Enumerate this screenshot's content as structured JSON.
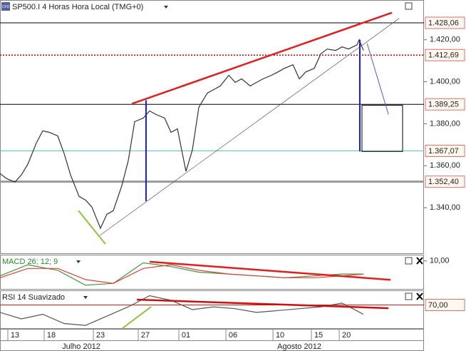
{
  "chart_data": [
    {
      "type": "line",
      "title": "SP500.I 4 Horas Hora Local (TMG+0)",
      "icon_text": "CFD",
      "xlim": [
        0,
        198.3
      ],
      "ylim": [
        1318.3,
        1438.6
      ],
      "yticks": [
        {
          "value": 1420,
          "label": "1.420,00"
        },
        {
          "value": 1400,
          "label": "1.400,00"
        },
        {
          "value": 1380,
          "label": "1.380,00"
        },
        {
          "value": 1360,
          "label": "1.360,00"
        },
        {
          "value": 1340,
          "label": "1.340,00"
        }
      ],
      "levels": [
        {
          "value": 1428.06,
          "label": "1.428,06",
          "color": "#000000",
          "style": "solid"
        },
        {
          "value": 1412.69,
          "label": "1.412,69",
          "color": "#cc0000",
          "style": "dotted"
        },
        {
          "value": 1389.25,
          "label": "1.389,25",
          "color": "#000000",
          "style": "solid"
        },
        {
          "value": 1367.07,
          "label": "1.367,07",
          "color": "#5cc8c0",
          "style": "solid"
        },
        {
          "value": 1352.4,
          "label": "1.352,40",
          "color": "#999999",
          "style": "thick"
        }
      ],
      "xticks": [
        {
          "value": 7,
          "label": "13"
        },
        {
          "value": 24,
          "label": "18"
        },
        {
          "value": 47,
          "label": "23"
        },
        {
          "value": 68,
          "label": "27"
        },
        {
          "value": 87,
          "label": "01"
        },
        {
          "value": 109,
          "label": "06"
        },
        {
          "value": 131,
          "label": "10"
        },
        {
          "value": 149,
          "label": "15"
        },
        {
          "value": 162,
          "label": "20"
        }
      ],
      "months": [
        {
          "value": 38,
          "label": "Julho 2012"
        },
        {
          "value": 140,
          "label": "Agosto 2012"
        }
      ],
      "series": [
        {
          "color": "#333333",
          "x": [
            0,
            3,
            7,
            10,
            13,
            17,
            20,
            23,
            27,
            30,
            33,
            37,
            40,
            43,
            47,
            50,
            53,
            57,
            60,
            63,
            67,
            70,
            73,
            77,
            80,
            83,
            87,
            90,
            93,
            97,
            100,
            103,
            107,
            110,
            113,
            117,
            120,
            123,
            127,
            130,
            133,
            137,
            140,
            143,
            147,
            150,
            153,
            157,
            160,
            163,
            167,
            168,
            170
          ],
          "values": [
            1356.3,
            1353.9,
            1352.2,
            1355.6,
            1360.7,
            1370.8,
            1376.6,
            1375.9,
            1374.2,
            1365.8,
            1355.6,
            1345.4,
            1343.7,
            1340.3,
            1330.2,
            1336.9,
            1338.6,
            1350.5,
            1362.4,
            1381,
            1382.7,
            1386.1,
            1384.4,
            1382.7,
            1375.9,
            1377.6,
            1357.3,
            1367.5,
            1387.8,
            1394.6,
            1396.3,
            1398,
            1403.1,
            1399.7,
            1401.4,
            1398,
            1399.7,
            1401.4,
            1403.1,
            1404.7,
            1406.4,
            1408.1,
            1401.4,
            1404.7,
            1406.4,
            1413.2,
            1415.6,
            1414.9,
            1416.6,
            1415.6,
            1417.6,
            1420,
            1414.9
          ]
        }
      ],
      "trendlines": [
        {
          "x": [
            61.7,
            183.3
          ],
          "y": [
            1389.5,
            1432.9
          ],
          "color": "#e02020",
          "width": 2.5
        },
        {
          "x": [
            46.7,
            186.7
          ],
          "y": [
            1326.8,
            1430.2
          ],
          "color": "#555555",
          "width": 0.7
        },
        {
          "x": [
            36.7,
            49.3
          ],
          "y": [
            1338.6,
            1322.7
          ],
          "color": "#8cc63f",
          "width": 2
        },
        {
          "x": [
            68.3,
            68.3
          ],
          "y": [
            1391.2,
            1343.1
          ],
          "color": "#1a1ad0",
          "width": 2
        },
        {
          "x": [
            168.3,
            168.3
          ],
          "y": [
            1420,
            1366.8
          ],
          "color": "#1a1ad0",
          "width": 2
        },
        {
          "x": [
            171.7,
            181.7
          ],
          "y": [
            1418.3,
            1384.4
          ],
          "color": "#4a5ae0",
          "width": 1
        }
      ],
      "box": {
        "x": [
          169.3,
          188.3
        ],
        "y": [
          1366.8,
          1388.8
        ]
      }
    },
    {
      "type": "line",
      "title": "MACD 26; 12; 9",
      "ylim": [
        -5,
        13
      ],
      "yticks": [
        {
          "value": 10,
          "label": "10,00"
        }
      ],
      "series": [
        {
          "color": "#3a9a3a",
          "x": [
            0,
            13,
            27,
            40,
            53,
            67,
            80,
            93,
            107,
            120,
            133,
            147,
            160,
            170
          ],
          "values": [
            2,
            8,
            5,
            -3,
            -2,
            9,
            7,
            4,
            3,
            2,
            1,
            2,
            3,
            3
          ]
        },
        {
          "color": "#e04040",
          "x": [
            0,
            13,
            27,
            40,
            53,
            67,
            80,
            93,
            107,
            120,
            133,
            147,
            160,
            170
          ],
          "values": [
            1,
            6,
            6,
            0,
            -2,
            6,
            8,
            5,
            3,
            2,
            1,
            1,
            2,
            3
          ]
        }
      ],
      "trendlines": [
        {
          "x": [
            70,
            182.7
          ],
          "y": [
            9.6,
            -0.1
          ],
          "color": "#e02020",
          "width": 2.5
        }
      ]
    },
    {
      "type": "line",
      "title": "RSI 14 Suavizado",
      "ylim": [
        45,
        85
      ],
      "levels": [
        {
          "value": 70,
          "label": "70,00",
          "color": "#cc2020",
          "style": "solid"
        }
      ],
      "series": [
        {
          "color": "#555555",
          "x": [
            0,
            10,
            20,
            30,
            40,
            50,
            60,
            70,
            80,
            90,
            100,
            110,
            120,
            130,
            140,
            150,
            160,
            170
          ],
          "values": [
            62,
            55,
            60,
            50,
            48,
            58,
            68,
            80,
            75,
            65,
            68,
            66,
            62,
            64,
            66,
            68,
            72,
            60
          ]
        }
      ],
      "trendlines": [
        {
          "x": [
            64,
            181.7
          ],
          "y": [
            75.8,
            66.5
          ],
          "color": "#cc1010",
          "width": 2.5
        },
        {
          "x": [
            57.3,
            70.7
          ],
          "y": [
            45,
            68.1
          ],
          "color": "#8cc63f",
          "width": 2
        }
      ]
    }
  ]
}
